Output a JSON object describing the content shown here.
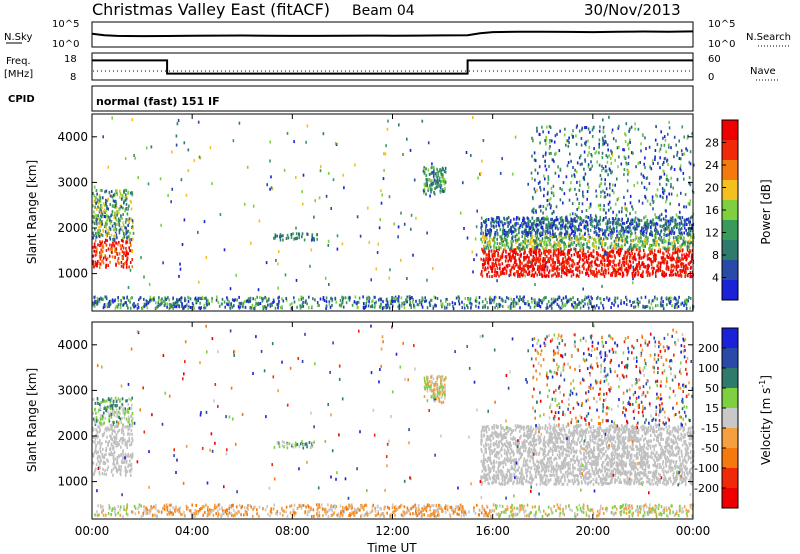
{
  "header": {
    "title": "Christmas Valley East (fitACF)",
    "beam": "Beam 04",
    "date": "30/Nov/2013"
  },
  "noise_panel": {
    "left_label": "N.Sky",
    "right_label": "N.Search",
    "left_ticks": [
      "10^5",
      "10^0"
    ],
    "right_ticks": [
      "10^5",
      "10^0"
    ]
  },
  "freq_panel": {
    "left_label_top": "Freq.",
    "left_label_bottom": "[MHz]",
    "right_label": "Nave",
    "left_ticks": [
      "18",
      "8"
    ],
    "right_ticks": [
      "60",
      "0"
    ]
  },
  "cpid": {
    "label": "CPID",
    "text": "normal (fast) 151 IF"
  },
  "colors": {
    "power_scale": [
      "#1a22d8",
      "#2a4aa8",
      "#2e7a6c",
      "#3a9a5a",
      "#7ed040",
      "#f4c020",
      "#f47a10",
      "#f02a08",
      "#ee0000"
    ],
    "velocity_scale": [
      "#1a22d8",
      "#2a4aa8",
      "#2e7a6c",
      "#7ed040",
      "#c8c8c8",
      "#f4a040",
      "#f47a10",
      "#f02a08",
      "#ee0000"
    ],
    "ground_scatter": "#c0c0c0"
  },
  "chart_data": [
    {
      "type": "line",
      "panel": "noise",
      "series": [
        {
          "name": "N.Sky",
          "x_hours": [
            0,
            0.5,
            1,
            2,
            3,
            4,
            5,
            6,
            7,
            8,
            9,
            10,
            11,
            12,
            13,
            14,
            15,
            15.5,
            16,
            17,
            18,
            19,
            20,
            21,
            22,
            23,
            24
          ],
          "values": [
            500,
            200,
            150,
            130,
            140,
            160,
            170,
            180,
            160,
            150,
            150,
            160,
            170,
            160,
            170,
            190,
            220,
            600,
            1200,
            1400,
            1500,
            1300,
            1200,
            1400,
            1600,
            1500,
            1700
          ]
        }
      ],
      "ylim": [
        "10^0",
        "10^5"
      ]
    },
    {
      "type": "line",
      "panel": "frequency",
      "series": [
        {
          "name": "Freq.",
          "x_hours": [
            0,
            3,
            3,
            15,
            15,
            24
          ],
          "values": [
            16,
            16,
            10,
            10,
            16,
            16
          ]
        }
      ],
      "ylim": [
        8,
        18
      ]
    },
    {
      "type": "heatmap",
      "panel": "power",
      "xlabel": "",
      "ylabel": "Slant Range [km]",
      "x_ticks": [
        "00:00",
        "04:00",
        "08:00",
        "12:00",
        "16:00",
        "20:00",
        "00:00"
      ],
      "y_ticks": [
        "1000",
        "2000",
        "3000",
        "4000"
      ],
      "xlim_hours": [
        0,
        24
      ],
      "ylim_km": [
        180,
        4500
      ],
      "colorbar": {
        "label": "Power [dB]",
        "ticks": [
          "4",
          "8",
          "12",
          "16",
          "20",
          "24",
          "28"
        ]
      }
    },
    {
      "type": "heatmap",
      "panel": "velocity",
      "xlabel": "Time UT",
      "ylabel": "Slant Range [km]",
      "x_ticks": [
        "00:00",
        "04:00",
        "08:00",
        "12:00",
        "16:00",
        "20:00",
        "00:00"
      ],
      "y_ticks": [
        "1000",
        "2000",
        "3000",
        "4000"
      ],
      "xlim_hours": [
        0,
        24
      ],
      "ylim_km": [
        180,
        4500
      ],
      "colorbar": {
        "label": "Velocity [m s^-1]",
        "ticks": [
          "200",
          "100",
          "50",
          "15",
          "-15",
          "-50",
          "-100",
          "-200"
        ]
      }
    }
  ]
}
